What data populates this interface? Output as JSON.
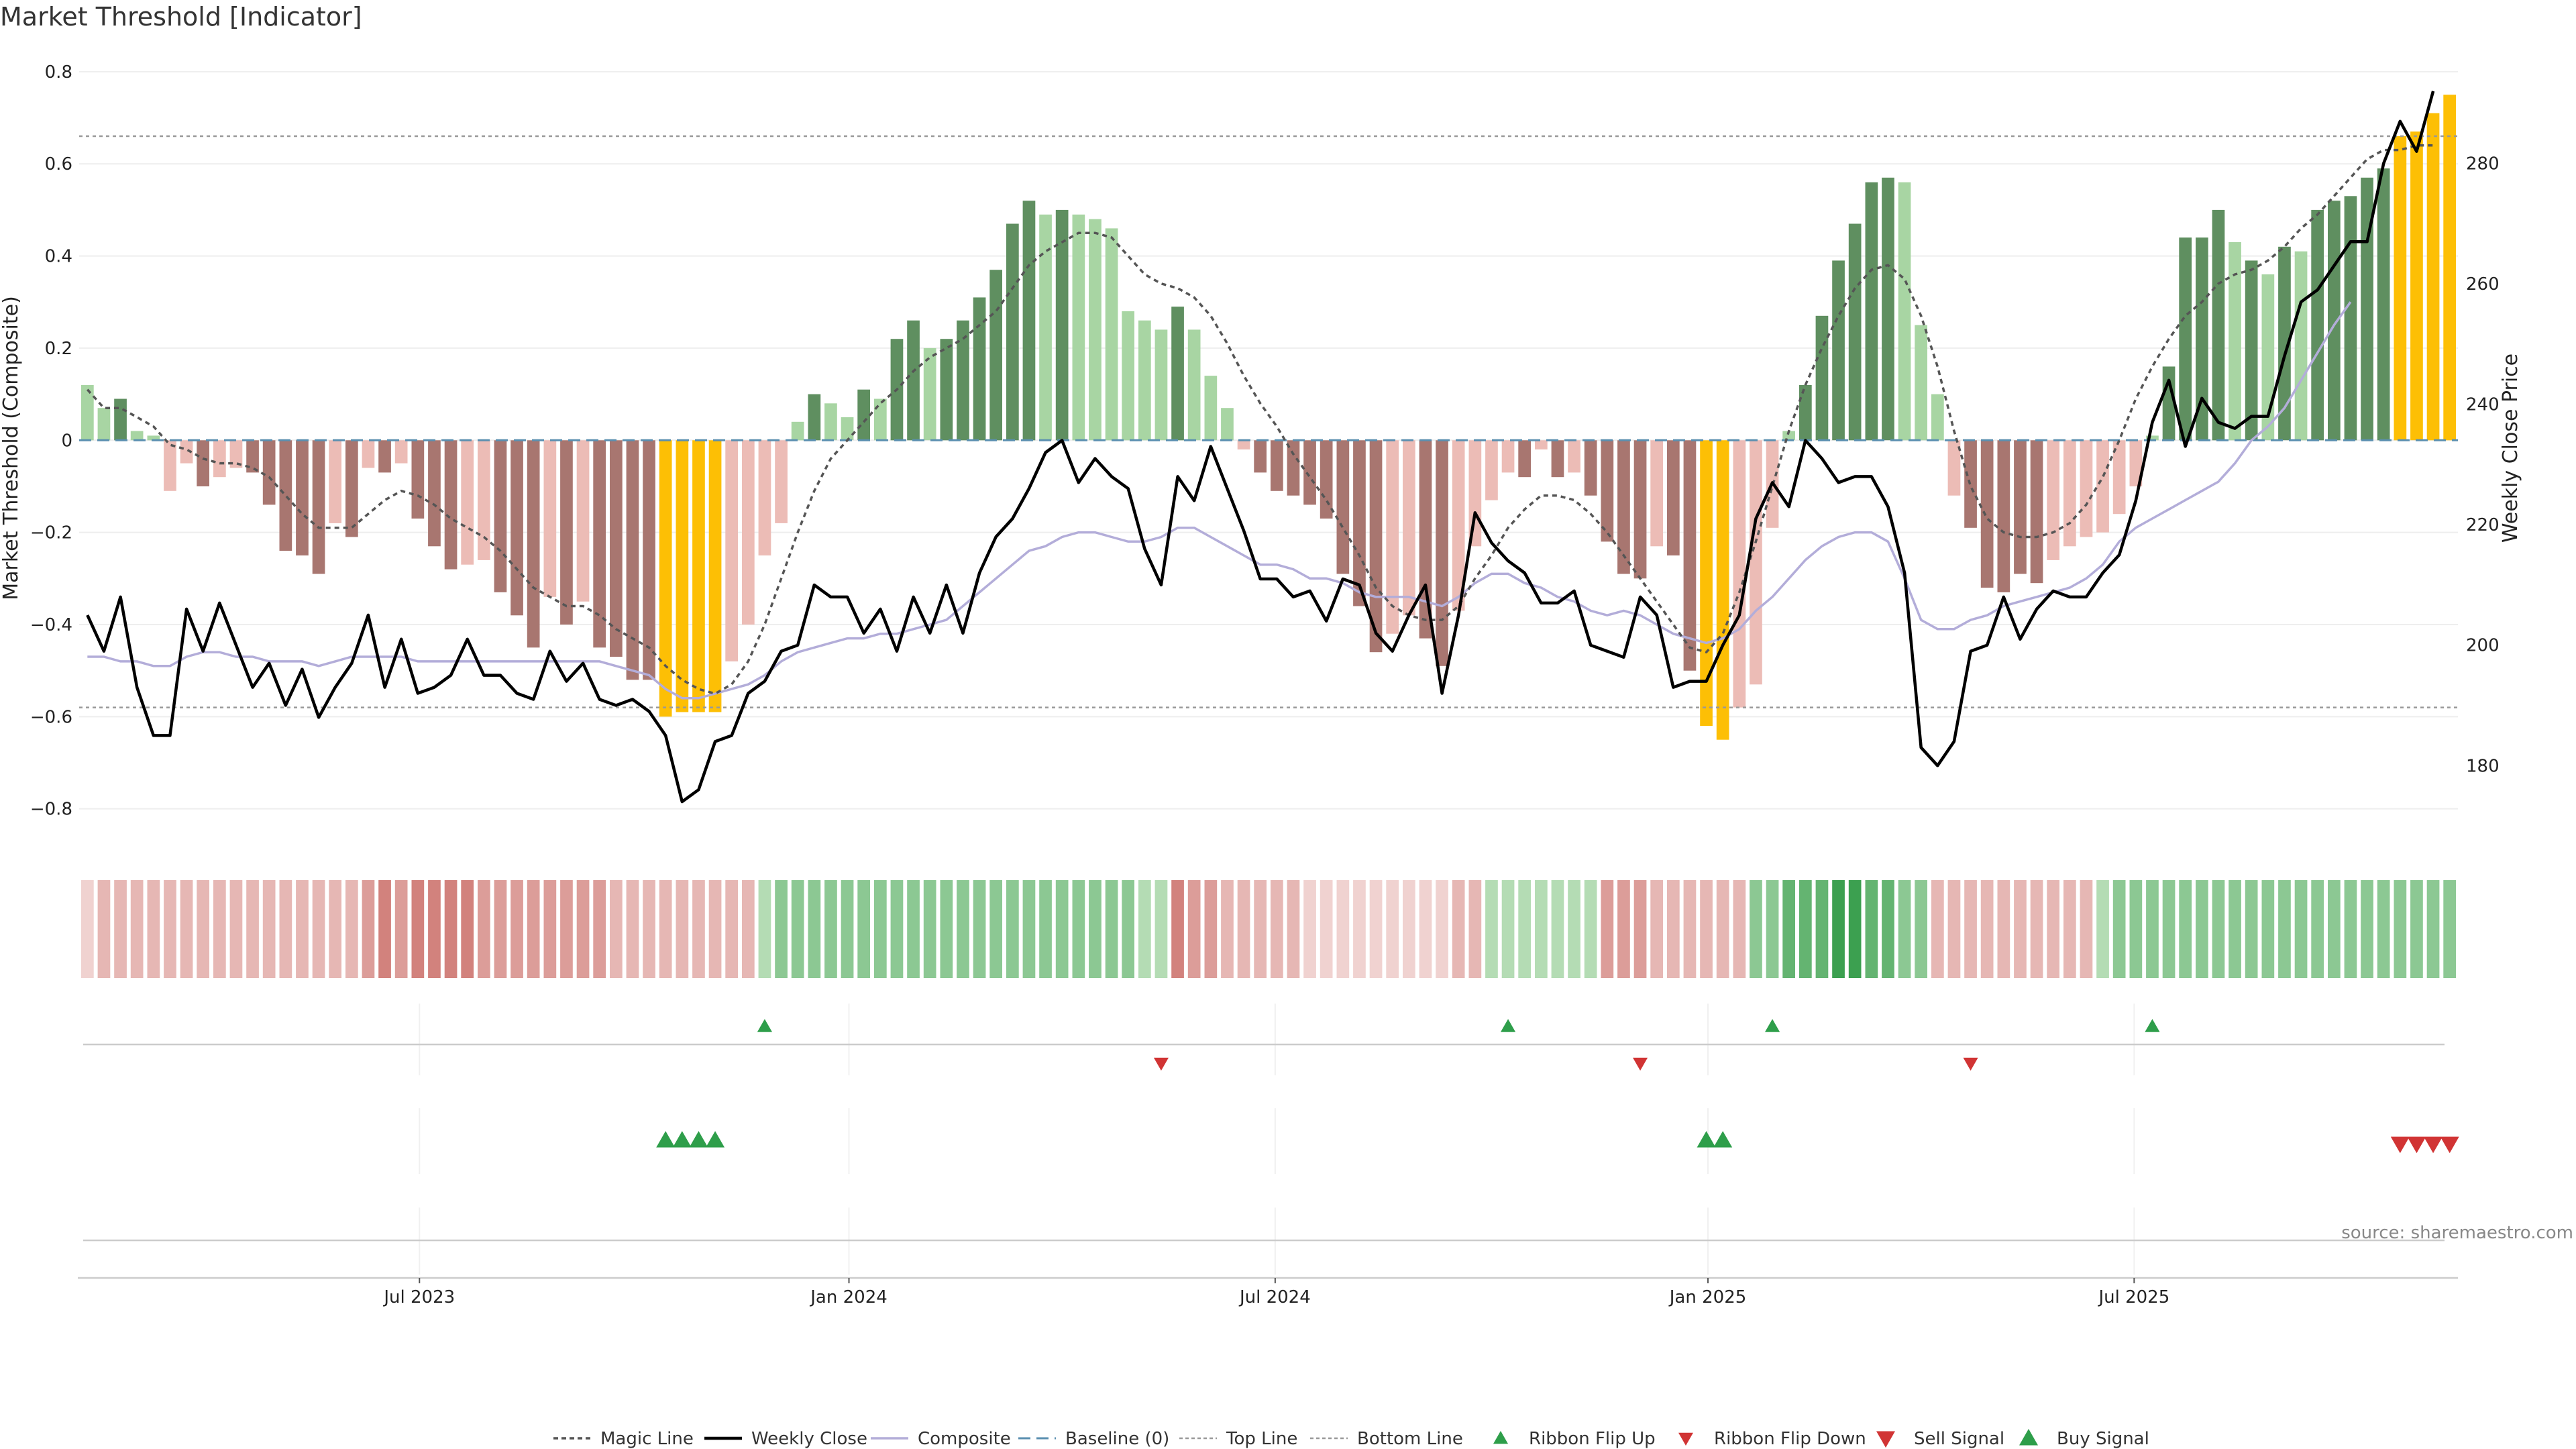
{
  "chart_data": {
    "type": "bar",
    "title": "Market Threshold [Indicator]",
    "ylabel": "Market Threshold (Composite)",
    "y2label": "Weekly Close Price",
    "ylim": [
      -0.85,
      0.81
    ],
    "y2lim": [
      169,
      296
    ],
    "yticks": [
      "0.8",
      "0.6",
      "0.4",
      "0.2",
      "0",
      "−0.2",
      "−0.4",
      "−0.6",
      "−0.8"
    ],
    "yticks_values": [
      0.8,
      0.6,
      0.4,
      0.2,
      0,
      -0.2,
      -0.4,
      -0.6,
      -0.8
    ],
    "y2ticks": [
      "280",
      "260",
      "240",
      "220",
      "200",
      "180"
    ],
    "y2ticks_values": [
      280,
      260,
      240,
      220,
      200,
      180
    ],
    "xtick_labels": [
      "Jul 2023",
      "Jan 2024",
      "Jul 2024",
      "Jan 2025",
      "Jul 2025"
    ],
    "xtick_weeks": [
      20.1,
      46.1,
      71.9,
      98.1,
      123.9
    ],
    "top_line": 0.66,
    "bottom_line": -0.58,
    "grid": true,
    "legend_placement": "bottom-center",
    "colors": {
      "dark_green": "#5f8f60",
      "light_green": "#a8d5a3",
      "dark_red": "#a87670",
      "light_red": "#ecbcb6",
      "extreme": "#fdbf05",
      "weekly_close": "#000000",
      "magic_line": "#555555",
      "composite": "#b3add9",
      "baseline": "#5a8fb0",
      "threshold_line": "#999999",
      "flip_up": "#2e9e4a",
      "flip_down": "#d13434"
    },
    "composite_bars": [
      0.12,
      0.07,
      0.09,
      0.02,
      0.01,
      -0.11,
      -0.05,
      -0.1,
      -0.08,
      -0.06,
      -0.07,
      -0.14,
      -0.24,
      -0.25,
      -0.29,
      -0.18,
      -0.21,
      -0.06,
      -0.07,
      -0.05,
      -0.17,
      -0.23,
      -0.28,
      -0.27,
      -0.26,
      -0.33,
      -0.38,
      -0.45,
      -0.34,
      -0.4,
      -0.35,
      -0.45,
      -0.47,
      -0.52,
      -0.52,
      -0.6,
      -0.59,
      -0.59,
      -0.59,
      -0.48,
      -0.4,
      -0.25,
      -0.18,
      0.04,
      0.1,
      0.08,
      0.05,
      0.11,
      0.09,
      0.22,
      0.26,
      0.2,
      0.22,
      0.26,
      0.31,
      0.37,
      0.47,
      0.52,
      0.49,
      0.5,
      0.49,
      0.48,
      0.46,
      0.28,
      0.26,
      0.24,
      0.29,
      0.24,
      0.14,
      0.07,
      -0.02,
      -0.07,
      -0.11,
      -0.12,
      -0.14,
      -0.17,
      -0.29,
      -0.36,
      -0.46,
      -0.42,
      -0.38,
      -0.43,
      -0.49,
      -0.37,
      -0.23,
      -0.13,
      -0.07,
      -0.08,
      -0.02,
      -0.08,
      -0.07,
      -0.12,
      -0.22,
      -0.29,
      -0.3,
      -0.23,
      -0.25,
      -0.5,
      -0.62,
      -0.65,
      -0.58,
      -0.53,
      -0.19,
      0.02,
      0.12,
      0.27,
      0.39,
      0.47,
      0.56,
      0.57,
      0.56,
      0.25,
      0.1,
      -0.12,
      -0.19,
      -0.32,
      -0.33,
      -0.29,
      -0.31,
      -0.26,
      -0.23,
      -0.21,
      -0.2,
      -0.16,
      -0.1,
      0.01,
      0.16,
      0.44,
      0.44,
      0.5,
      0.43,
      0.39,
      0.36,
      0.42,
      0.41,
      0.5,
      0.52,
      0.53,
      0.57,
      0.59,
      0.66,
      0.67,
      0.71,
      0.75
    ],
    "bar_classes": [
      "lg",
      "lg",
      "dg",
      "lg",
      "lg",
      "lr",
      "lr",
      "dr",
      "lr",
      "lr",
      "dr",
      "dr",
      "dr",
      "dr",
      "dr",
      "lr",
      "dr",
      "lr",
      "dr",
      "lr",
      "dr",
      "dr",
      "dr",
      "lr",
      "lr",
      "dr",
      "dr",
      "dr",
      "lr",
      "dr",
      "lr",
      "dr",
      "dr",
      "dr",
      "dr",
      "ex",
      "ex",
      "ex",
      "ex",
      "lr",
      "lr",
      "lr",
      "lr",
      "lg",
      "dg",
      "lg",
      "lg",
      "dg",
      "lg",
      "dg",
      "dg",
      "lg",
      "dg",
      "dg",
      "dg",
      "dg",
      "dg",
      "dg",
      "lg",
      "dg",
      "lg",
      "lg",
      "lg",
      "lg",
      "lg",
      "lg",
      "dg",
      "lg",
      "lg",
      "lg",
      "lr",
      "dr",
      "dr",
      "dr",
      "dr",
      "dr",
      "dr",
      "dr",
      "dr",
      "lr",
      "lr",
      "dr",
      "dr",
      "lr",
      "lr",
      "lr",
      "lr",
      "dr",
      "lr",
      "dr",
      "lr",
      "dr",
      "dr",
      "dr",
      "dr",
      "lr",
      "dr",
      "dr",
      "ex",
      "ex",
      "lr",
      "lr",
      "lr",
      "lg",
      "dg",
      "dg",
      "dg",
      "dg",
      "dg",
      "dg",
      "lg",
      "lg",
      "lg",
      "lr",
      "dr",
      "dr",
      "dr",
      "dr",
      "dr",
      "lr",
      "lr",
      "lr",
      "lr",
      "lr",
      "lr",
      "lg",
      "dg",
      "dg",
      "dg",
      "dg",
      "lg",
      "dg",
      "lg",
      "dg",
      "lg",
      "dg",
      "dg",
      "dg",
      "dg",
      "dg",
      "ex",
      "ex",
      "ex",
      "ex"
    ],
    "weekly_close": [
      205,
      199,
      208,
      193,
      185,
      185,
      206,
      199,
      207,
      200,
      193,
      197,
      190,
      196,
      188,
      193,
      197,
      205,
      193,
      201,
      192,
      193,
      195,
      201,
      195,
      195,
      192,
      191,
      199,
      194,
      197,
      191,
      190,
      191,
      189,
      185,
      174,
      176,
      184,
      185,
      192,
      194,
      199,
      200,
      210,
      208,
      208,
      202,
      206,
      199,
      208,
      202,
      210,
      202,
      212,
      218,
      221,
      226,
      232,
      234,
      227,
      231,
      228,
      226,
      216,
      210,
      228,
      224,
      233,
      226,
      219,
      211,
      211,
      208,
      209,
      204,
      211,
      210,
      202,
      199,
      205,
      210,
      192,
      205,
      222,
      217,
      214,
      212,
      207,
      207,
      209,
      200,
      199,
      198,
      208,
      205,
      193,
      194,
      194,
      200,
      205,
      221,
      227,
      223,
      234,
      231,
      227,
      228,
      228,
      223,
      212,
      183,
      180,
      184,
      199,
      200,
      208,
      201,
      206,
      209,
      208,
      208,
      212,
      215,
      224,
      237,
      244,
      233,
      241,
      237,
      236,
      238,
      238,
      248,
      257,
      259,
      263,
      267,
      267,
      280,
      287,
      282,
      292
    ],
    "magic_line": [
      0.11,
      0.07,
      0.07,
      0.05,
      0.03,
      -0.01,
      -0.02,
      -0.04,
      -0.05,
      -0.05,
      -0.06,
      -0.08,
      -0.12,
      -0.16,
      -0.19,
      -0.19,
      -0.19,
      -0.16,
      -0.13,
      -0.11,
      -0.12,
      -0.14,
      -0.17,
      -0.19,
      -0.21,
      -0.24,
      -0.28,
      -0.32,
      -0.34,
      -0.36,
      -0.36,
      -0.38,
      -0.41,
      -0.43,
      -0.45,
      -0.49,
      -0.52,
      -0.54,
      -0.55,
      -0.53,
      -0.48,
      -0.4,
      -0.3,
      -0.2,
      -0.11,
      -0.04,
      0.0,
      0.04,
      0.08,
      0.11,
      0.15,
      0.18,
      0.2,
      0.22,
      0.25,
      0.28,
      0.33,
      0.38,
      0.41,
      0.43,
      0.45,
      0.45,
      0.44,
      0.4,
      0.36,
      0.34,
      0.33,
      0.31,
      0.27,
      0.21,
      0.14,
      0.08,
      0.03,
      -0.03,
      -0.08,
      -0.13,
      -0.19,
      -0.25,
      -0.32,
      -0.36,
      -0.38,
      -0.39,
      -0.39,
      -0.36,
      -0.3,
      -0.25,
      -0.19,
      -0.15,
      -0.12,
      -0.12,
      -0.13,
      -0.16,
      -0.2,
      -0.25,
      -0.3,
      -0.35,
      -0.4,
      -0.45,
      -0.46,
      -0.42,
      -0.33,
      -0.22,
      -0.1,
      0.02,
      0.12,
      0.2,
      0.27,
      0.33,
      0.37,
      0.38,
      0.35,
      0.27,
      0.16,
      0.02,
      -0.1,
      -0.17,
      -0.2,
      -0.21,
      -0.21,
      -0.2,
      -0.18,
      -0.14,
      -0.08,
      0.0,
      0.09,
      0.16,
      0.22,
      0.27,
      0.3,
      0.34,
      0.36,
      0.37,
      0.39,
      0.42,
      0.46,
      0.49,
      0.53,
      0.57,
      0.61,
      0.63,
      0.63,
      0.64,
      0.64
    ],
    "composite_line": [
      -0.47,
      -0.47,
      -0.48,
      -0.48,
      -0.49,
      -0.49,
      -0.47,
      -0.46,
      -0.46,
      -0.47,
      -0.47,
      -0.48,
      -0.48,
      -0.48,
      -0.49,
      -0.48,
      -0.47,
      -0.47,
      -0.47,
      -0.47,
      -0.48,
      -0.48,
      -0.48,
      -0.48,
      -0.48,
      -0.48,
      -0.48,
      -0.48,
      -0.48,
      -0.48,
      -0.48,
      -0.48,
      -0.49,
      -0.5,
      -0.51,
      -0.54,
      -0.56,
      -0.56,
      -0.55,
      -0.54,
      -0.53,
      -0.51,
      -0.48,
      -0.46,
      -0.45,
      -0.44,
      -0.43,
      -0.43,
      -0.42,
      -0.42,
      -0.41,
      -0.4,
      -0.39,
      -0.36,
      -0.33,
      -0.3,
      -0.27,
      -0.24,
      -0.23,
      -0.21,
      -0.2,
      -0.2,
      -0.21,
      -0.22,
      -0.22,
      -0.21,
      -0.19,
      -0.19,
      -0.21,
      -0.23,
      -0.25,
      -0.27,
      -0.27,
      -0.28,
      -0.3,
      -0.3,
      -0.31,
      -0.33,
      -0.34,
      -0.34,
      -0.34,
      -0.35,
      -0.36,
      -0.34,
      -0.31,
      -0.29,
      -0.29,
      -0.31,
      -0.32,
      -0.34,
      -0.35,
      -0.37,
      -0.38,
      -0.37,
      -0.38,
      -0.4,
      -0.42,
      -0.43,
      -0.44,
      -0.43,
      -0.41,
      -0.37,
      -0.34,
      -0.3,
      -0.26,
      -0.23,
      -0.21,
      -0.2,
      -0.2,
      -0.22,
      -0.3,
      -0.39,
      -0.41,
      -0.41,
      -0.39,
      -0.38,
      -0.36,
      -0.35,
      -0.34,
      -0.33,
      -0.32,
      -0.3,
      -0.27,
      -0.22,
      -0.19,
      -0.17,
      -0.15,
      -0.13,
      -0.11,
      -0.09,
      -0.05,
      0.0,
      0.03,
      0.07,
      0.13,
      0.19,
      0.25,
      0.3
    ],
    "ribbon_shades": [
      3,
      4,
      4,
      4,
      4,
      4,
      4,
      4,
      4,
      4,
      4,
      4,
      4,
      4,
      4,
      4,
      4,
      5,
      6,
      5,
      6,
      6,
      6,
      6,
      5,
      5,
      5,
      5,
      5,
      5,
      5,
      5,
      4,
      4,
      4,
      4,
      4,
      4,
      4,
      4,
      4,
      11,
      12,
      12,
      12,
      12,
      12,
      12,
      12,
      12,
      12,
      12,
      12,
      12,
      12,
      12,
      12,
      12,
      12,
      12,
      12,
      12,
      12,
      12,
      11,
      11,
      6,
      5,
      5,
      4,
      4,
      4,
      4,
      4,
      3,
      3,
      3,
      3,
      3,
      3,
      3,
      3,
      3,
      4,
      4,
      11,
      11,
      11,
      11,
      11,
      11,
      11,
      5,
      5,
      5,
      4,
      4,
      4,
      4,
      4,
      4,
      12,
      12,
      13,
      13,
      13,
      14,
      14,
      13,
      13,
      12,
      12,
      4,
      4,
      4,
      4,
      4,
      4,
      4,
      4,
      4,
      4,
      11,
      12,
      12,
      12,
      12,
      12,
      12,
      12,
      12,
      12,
      12,
      12,
      12,
      12,
      12,
      12,
      12,
      12,
      12,
      12,
      12,
      12
    ],
    "ribbon_flip_up": [
      41,
      86,
      102,
      125
    ],
    "ribbon_flip_down": [
      65,
      94,
      114
    ],
    "buy_signal": [
      35,
      36,
      37,
      38,
      98,
      99
    ],
    "sell_signal": [
      140,
      141,
      142,
      143
    ],
    "legend": [
      "Magic Line",
      "Weekly Close",
      "Composite",
      "Baseline (0)",
      "Top Line",
      "Bottom Line",
      "Ribbon Flip Up",
      "Ribbon Flip Down",
      "Sell Signal",
      "Buy Signal"
    ],
    "source": "source: sharemaestro.com"
  }
}
